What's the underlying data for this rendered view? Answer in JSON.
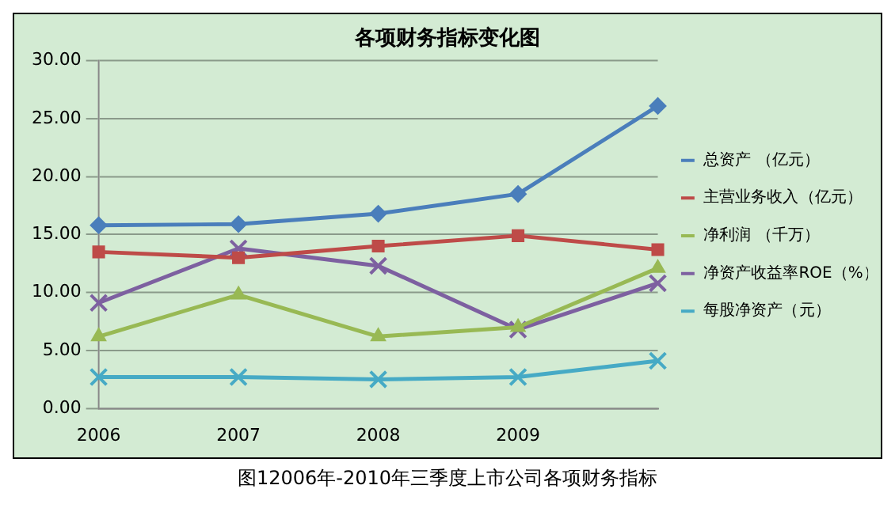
{
  "chart_data": {
    "type": "line",
    "title": "各项财务指标变化图",
    "categories": [
      "2006",
      "2007",
      "2008",
      "2009",
      null
    ],
    "series": [
      {
        "name": "总资产 （亿元）",
        "color": "#4a7ebb",
        "marker": "diamond",
        "values": [
          15.8,
          15.9,
          16.8,
          18.5,
          26.1
        ]
      },
      {
        "name": "主营业务收入（亿元）",
        "color": "#be4b48",
        "marker": "square",
        "values": [
          13.5,
          13.0,
          14.0,
          14.9,
          13.7
        ]
      },
      {
        "name": "净利润 （千万）",
        "color": "#98b954",
        "marker": "triangle",
        "values": [
          6.2,
          9.8,
          6.2,
          7.0,
          12.1
        ]
      },
      {
        "name": "净资产收益率ROE（%）",
        "color": "#7d60a0",
        "marker": "cross",
        "values": [
          9.1,
          13.8,
          12.3,
          6.8,
          10.8
        ]
      },
      {
        "name": "每股净资产（元）",
        "color": "#46aac5",
        "marker": "cross",
        "values": [
          2.7,
          2.7,
          2.5,
          2.7,
          4.1
        ]
      }
    ],
    "ylim": [
      0,
      30
    ],
    "yticks": [
      {
        "value": 0,
        "label": "0.00"
      },
      {
        "value": 5,
        "label": "5.00"
      },
      {
        "value": 10,
        "label": "10.00"
      },
      {
        "value": 15,
        "label": "15.00"
      },
      {
        "value": 20,
        "label": "20.00"
      },
      {
        "value": 25,
        "label": "25.00"
      },
      {
        "value": 30,
        "label": "30.00"
      }
    ],
    "grid": "y",
    "legend": "right",
    "annotations": [
      "图12006年-2010年三季度上市公司各项财务指标"
    ]
  }
}
